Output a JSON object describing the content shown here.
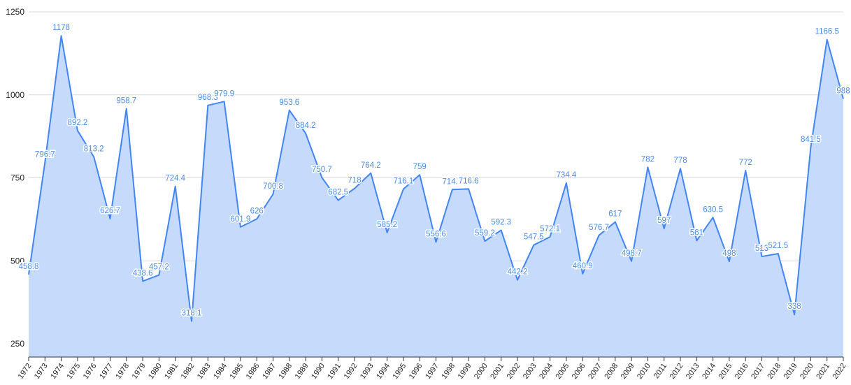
{
  "chart_data": {
    "type": "area",
    "categories": [
      "1972",
      "1973",
      "1974",
      "1975",
      "1976",
      "1977",
      "1978",
      "1979",
      "1980",
      "1981",
      "1982",
      "1983",
      "1984",
      "1985",
      "1986",
      "1987",
      "1988",
      "1989",
      "1990",
      "1991",
      "1992",
      "1993",
      "1994",
      "1995",
      "1996",
      "1997",
      "1998",
      "1999",
      "2000",
      "2001",
      "2002",
      "2003",
      "2004",
      "2005",
      "2006",
      "2007",
      "2008",
      "2009",
      "2010",
      "2011",
      "2012",
      "2013",
      "2014",
      "2015",
      "2016",
      "2017",
      "2018",
      "2019",
      "2020",
      "2021",
      "2022"
    ],
    "values": [
      458.8,
      796.7,
      1178,
      892.2,
      813.2,
      626.7,
      958.7,
      438.6,
      457.2,
      724.4,
      318.1,
      968.3,
      979.9,
      601.9,
      626,
      700.8,
      953.6,
      884.2,
      750.7,
      682.5,
      718,
      764.2,
      585.2,
      716.1,
      759,
      556.6,
      714.7,
      716.6,
      559.2,
      592.3,
      442.2,
      547.5,
      572.1,
      734.4,
      460.9,
      576.7,
      617,
      498.7,
      782,
      597,
      778,
      561,
      630.5,
      498,
      772,
      513,
      521.5,
      338,
      841.5,
      1166.5,
      988
    ],
    "color": "#4285f4",
    "fill": "#c6dafc",
    "ylim": [
      210,
      1250
    ],
    "yticks": [
      250,
      500,
      750,
      1000,
      1250
    ],
    "grid": true
  }
}
